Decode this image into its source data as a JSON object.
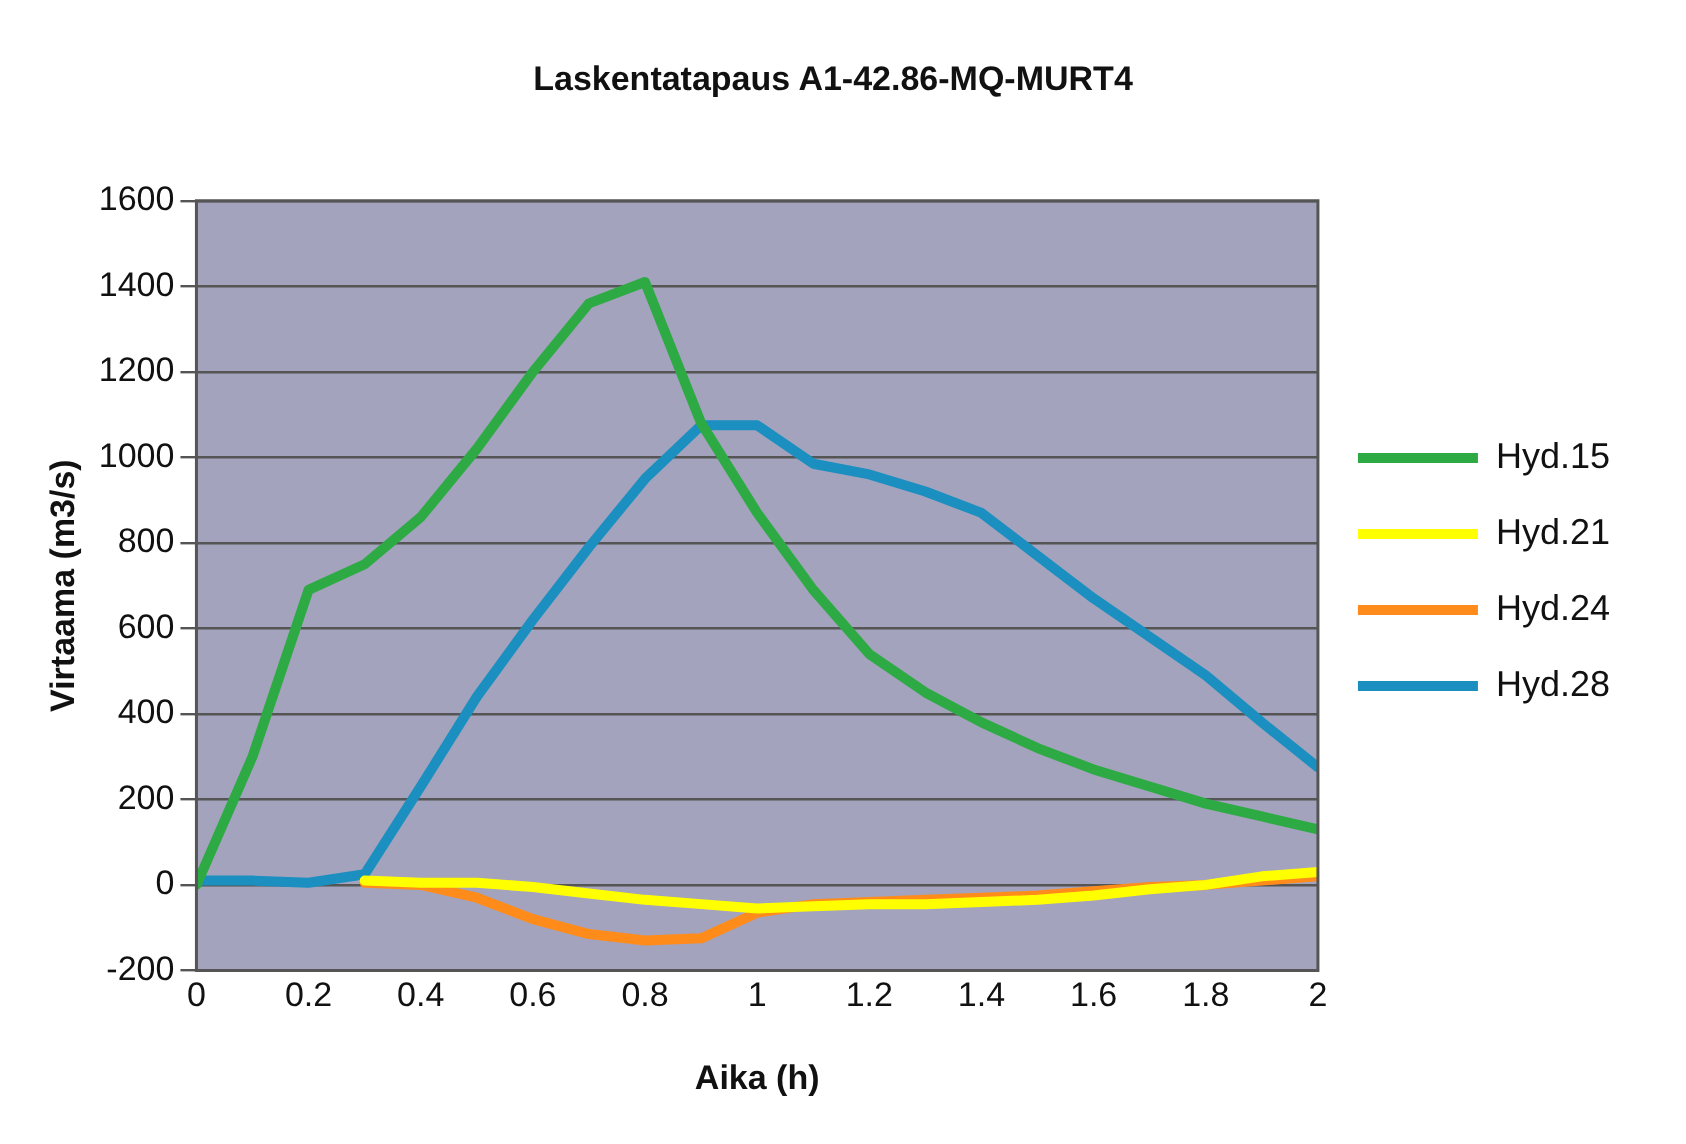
{
  "chart_data": {
    "type": "line",
    "title": "Laskentatapaus A1-42.86-MQ-MURT4",
    "xlabel": "Aika (h)",
    "ylabel": "Virtaama (m3/s)",
    "x": [
      0,
      0.1,
      0.2,
      0.3,
      0.4,
      0.5,
      0.6,
      0.7,
      0.8,
      0.9,
      1.0,
      1.1,
      1.2,
      1.3,
      1.4,
      1.5,
      1.6,
      1.7,
      1.8,
      1.9,
      2.0
    ],
    "series": [
      {
        "name": "Hyd.15",
        "color": "#2eaa44",
        "values": [
          0,
          300,
          690,
          750,
          860,
          1020,
          1200,
          1360,
          1410,
          1080,
          870,
          690,
          540,
          450,
          380,
          320,
          270,
          230,
          190,
          160,
          130
        ]
      },
      {
        "name": "Hyd.21",
        "color": "#ffff00",
        "values": [
          null,
          null,
          null,
          10,
          5,
          5,
          -5,
          -20,
          -35,
          -45,
          -55,
          -50,
          -45,
          -45,
          -40,
          -35,
          -25,
          -10,
          0,
          20,
          30
        ]
      },
      {
        "name": "Hyd.24",
        "color": "#ff8c1a",
        "values": [
          null,
          null,
          null,
          5,
          0,
          -30,
          -80,
          -115,
          -130,
          -125,
          -65,
          -45,
          -40,
          -35,
          -30,
          -25,
          -15,
          -5,
          0,
          10,
          20
        ]
      },
      {
        "name": "Hyd.28",
        "color": "#1a8fc0",
        "values": [
          10,
          10,
          5,
          25,
          230,
          440,
          620,
          790,
          950,
          1075,
          1075,
          985,
          960,
          920,
          870,
          770,
          670,
          580,
          490,
          380,
          275
        ]
      }
    ],
    "xlim": [
      0,
      2
    ],
    "xticks": [
      0,
      0.2,
      0.4,
      0.6,
      0.8,
      1,
      1.2,
      1.4,
      1.6,
      1.8,
      2
    ],
    "ylim": [
      -200,
      1600
    ],
    "yticks": [
      -200,
      0,
      200,
      400,
      600,
      800,
      1000,
      1200,
      1400,
      1600
    ],
    "grid": "y",
    "legend": "right",
    "marker": "none",
    "line_style": "solid"
  }
}
